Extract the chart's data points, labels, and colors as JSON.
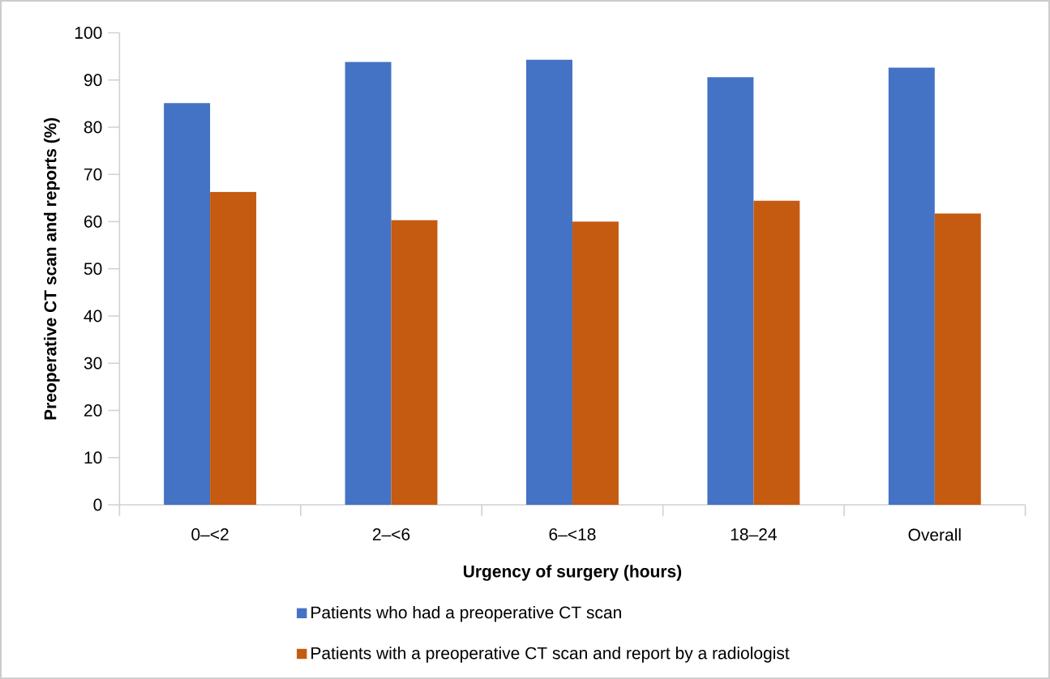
{
  "chart_data": {
    "type": "bar",
    "xlabel": "Urgency of surgery (hours)",
    "ylabel": "Preoperative CT scan and reports (%)",
    "categories": [
      "0–<2",
      "2–<6",
      "6–<18",
      "18–24",
      "Overall"
    ],
    "series": [
      {
        "name": "Patients who had a preoperative CT scan",
        "color": "#4472c4",
        "values": [
          85.1,
          93.8,
          94.3,
          90.6,
          92.6
        ]
      },
      {
        "name": "Patients with a preoperative CT scan and report by a radiologist",
        "color": "#c55a11",
        "values": [
          66.3,
          60.3,
          60.0,
          64.4,
          61.7
        ]
      }
    ],
    "ylim": [
      0,
      100
    ],
    "yticks": [
      0,
      10,
      20,
      30,
      40,
      50,
      60,
      70,
      80,
      90,
      100
    ],
    "grid": false,
    "legend": "bottom"
  }
}
